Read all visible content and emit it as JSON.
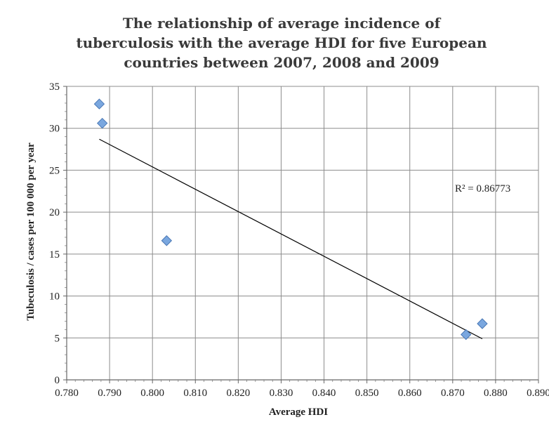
{
  "chart_data": {
    "type": "scatter",
    "title_lines": [
      "The relationship of average incidence of",
      "tuberculosis with the average HDI for five European",
      "countries between 2007, 2008 and 2009"
    ],
    "xlabel": "Average HDI",
    "ylabel": "Tubeculosis / cases per 100 000 per year",
    "xlim": [
      0.78,
      0.89
    ],
    "ylim": [
      0,
      35
    ],
    "x_ticks": [
      "0.780",
      "0.790",
      "0.800",
      "0.810",
      "0.820",
      "0.830",
      "0.840",
      "0.850",
      "0.860",
      "0.870",
      "0.880",
      "0.890"
    ],
    "y_ticks": [
      "0",
      "5",
      "10",
      "15",
      "20",
      "25",
      "30",
      "35"
    ],
    "grid": true,
    "legend": "none",
    "marker": "diamond",
    "marker_color": "#7aa7df",
    "points": [
      {
        "x": 0.7876,
        "y": 32.9
      },
      {
        "x": 0.7883,
        "y": 30.6
      },
      {
        "x": 0.8033,
        "y": 16.6
      },
      {
        "x": 0.8731,
        "y": 5.4
      },
      {
        "x": 0.8769,
        "y": 6.7
      }
    ],
    "trendline": {
      "type": "linear",
      "x_start": 0.7876,
      "y_start": 28.7,
      "x_end": 0.8769,
      "y_end": 4.9,
      "r_squared_label": "R² = 0.86773"
    }
  }
}
